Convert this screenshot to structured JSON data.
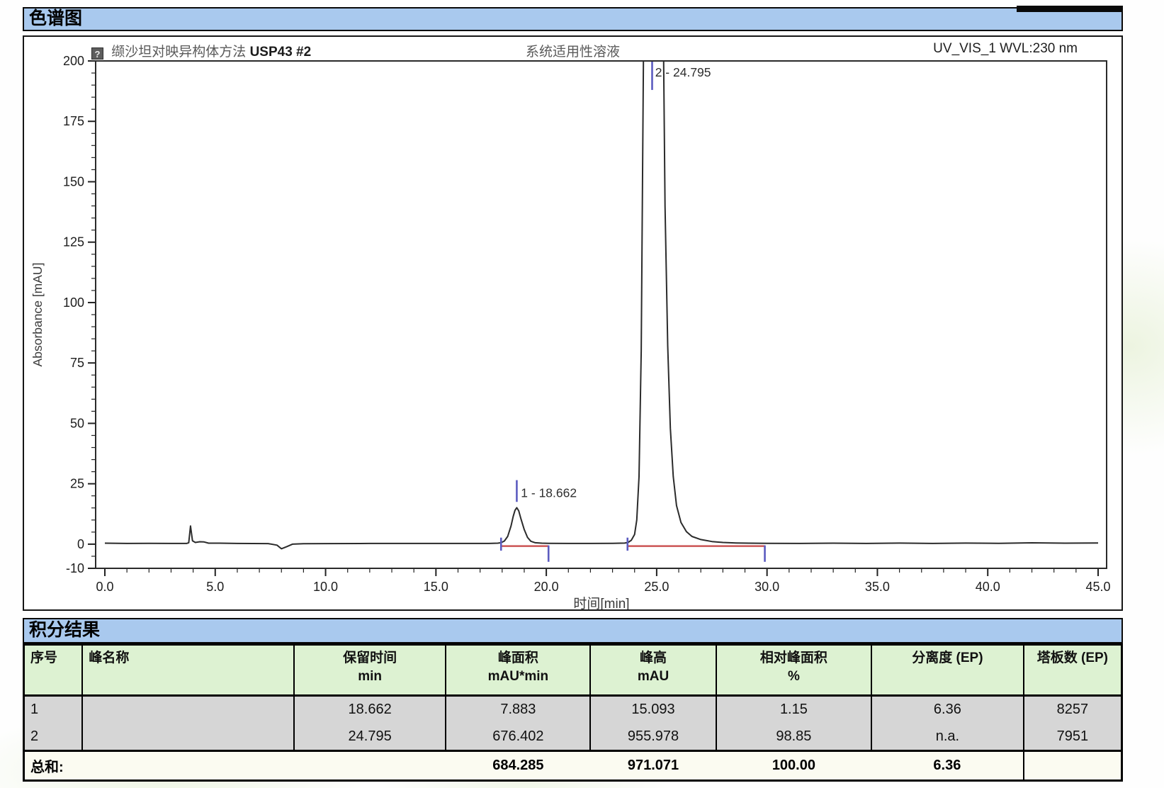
{
  "sections": {
    "chromatogram_title": "色谱图",
    "integration_title": "积分结果"
  },
  "chart": {
    "sample_icon_glyph": "?",
    "title_left_cn": "缬沙坦对映异构体方法",
    "title_left_en": "USP43 #2",
    "title_center": "系统适用性溶液",
    "title_right": "UV_VIS_1 WVL:230 nm"
  },
  "chart_data": {
    "type": "line",
    "title": "缬沙坦对映异构体方法USP43 #2 — 系统适用性溶液",
    "detector_channel": "UV_VIS_1 WVL:230 nm",
    "xlabel": "时间[min]",
    "ylabel": "Absorbance [mAU]",
    "xlim": [
      0,
      45
    ],
    "ylim": [
      -10,
      200
    ],
    "x_major_ticks": [
      0,
      5,
      10,
      15,
      20,
      25,
      30,
      35,
      40,
      45
    ],
    "x_tick_labels": [
      "0.0",
      "5.0",
      "10.0",
      "15.0",
      "20.0",
      "25.0",
      "30.0",
      "35.0",
      "40.0",
      "45.0"
    ],
    "x_minor_step": 1,
    "y_major_ticks": [
      200,
      175,
      150,
      125,
      100,
      75,
      50,
      25,
      0,
      -10
    ],
    "y_tick_labels": [
      "200",
      "175",
      "150",
      "125",
      "100",
      "75",
      "50",
      "25",
      "0",
      "-10"
    ],
    "y_minor_step": 5,
    "grid": false,
    "trace_color": "#2b2b2b",
    "baseline_color": "#cc5555",
    "marker_color": "#5b5bc0",
    "series": [
      {
        "name": "UV_VIS_1",
        "points": [
          [
            0,
            0.4
          ],
          [
            1,
            0.3
          ],
          [
            2,
            0.35
          ],
          [
            3,
            0.3
          ],
          [
            3.7,
            0.3
          ],
          [
            3.8,
            0.6
          ],
          [
            3.88,
            7.5
          ],
          [
            3.97,
            1.4
          ],
          [
            4.1,
            0.7
          ],
          [
            4.3,
            1.0
          ],
          [
            4.5,
            0.9
          ],
          [
            4.7,
            0.4
          ],
          [
            5.2,
            0.4
          ],
          [
            6,
            0.3
          ],
          [
            7.4,
            0.25
          ],
          [
            7.8,
            -0.4
          ],
          [
            8.0,
            -1.9
          ],
          [
            8.25,
            -1.0
          ],
          [
            8.5,
            0
          ],
          [
            9,
            0.2
          ],
          [
            10,
            0.25
          ],
          [
            12,
            0.3
          ],
          [
            14,
            0.3
          ],
          [
            16,
            0.3
          ],
          [
            17.4,
            0.3
          ],
          [
            17.8,
            0.4
          ],
          [
            17.95,
            0.6
          ],
          [
            18.1,
            1.3
          ],
          [
            18.25,
            3.2
          ],
          [
            18.4,
            7.5
          ],
          [
            18.5,
            11.5
          ],
          [
            18.58,
            14
          ],
          [
            18.662,
            15.1
          ],
          [
            18.75,
            13.8
          ],
          [
            18.85,
            10.5
          ],
          [
            19,
            6
          ],
          [
            19.15,
            2.8
          ],
          [
            19.3,
            1.2
          ],
          [
            19.5,
            0.6
          ],
          [
            19.8,
            0.4
          ],
          [
            20.1,
            0.35
          ],
          [
            21,
            0.3
          ],
          [
            22,
            0.3
          ],
          [
            23,
            0.35
          ],
          [
            23.55,
            0.45
          ],
          [
            23.7,
            0.7
          ],
          [
            23.85,
            1.6
          ],
          [
            24,
            4
          ],
          [
            24.1,
            10
          ],
          [
            24.2,
            28
          ],
          [
            24.3,
            80
          ],
          [
            24.4,
            200
          ],
          [
            24.5,
            430
          ],
          [
            24.62,
            720
          ],
          [
            24.72,
            910
          ],
          [
            24.795,
            956
          ],
          [
            24.88,
            910
          ],
          [
            24.98,
            770
          ],
          [
            25.08,
            580
          ],
          [
            25.18,
            390
          ],
          [
            25.28,
            235
          ],
          [
            25.38,
            140
          ],
          [
            25.5,
            82
          ],
          [
            25.62,
            48
          ],
          [
            25.75,
            28
          ],
          [
            25.9,
            16
          ],
          [
            26.1,
            9
          ],
          [
            26.35,
            5.2
          ],
          [
            26.6,
            3.2
          ],
          [
            27,
            1.9
          ],
          [
            27.5,
            1.1
          ],
          [
            28,
            0.7
          ],
          [
            28.6,
            0.5
          ],
          [
            29.2,
            0.4
          ],
          [
            30,
            0.35
          ],
          [
            31.5,
            0.3
          ],
          [
            33,
            0.4
          ],
          [
            34.5,
            0.3
          ],
          [
            36,
            0.45
          ],
          [
            37.5,
            0.3
          ],
          [
            39,
            0.45
          ],
          [
            40.5,
            0.35
          ],
          [
            42,
            0.55
          ],
          [
            43.5,
            0.4
          ],
          [
            45,
            0.5
          ]
        ]
      }
    ],
    "integration_baselines": [
      {
        "x1": 17.95,
        "x2": 20.1,
        "y": -0.8
      },
      {
        "x1": 23.68,
        "x2": 29.9,
        "y": -0.8
      }
    ],
    "peak_markers": [
      {
        "type": "start",
        "x": 17.95,
        "y1": -2.7,
        "y2": 2.7
      },
      {
        "type": "apex",
        "x": 18.662,
        "y1": 17.5,
        "y2": 26.5
      },
      {
        "type": "end",
        "x": 20.1,
        "y1": -7.3,
        "y2": -0.5
      },
      {
        "type": "start",
        "x": 23.68,
        "y1": -2.7,
        "y2": 2.7
      },
      {
        "type": "apex",
        "x": 24.795,
        "y1": 188,
        "y2": 200
      },
      {
        "type": "end",
        "x": 29.9,
        "y1": -7.3,
        "y2": -0.5
      }
    ],
    "peak_labels": [
      {
        "text": "1 - 18.662",
        "x": 18.85,
        "y": 19.5
      },
      {
        "text": "2 - 24.795",
        "x": 24.93,
        "y": 193.5
      }
    ],
    "peaks": [
      {
        "number": 1,
        "retention_min": 18.662,
        "height_mAU": 15.093
      },
      {
        "number": 2,
        "retention_min": 24.795,
        "height_mAU": 955.978
      }
    ]
  },
  "table": {
    "columns": [
      {
        "label": "序号",
        "unit": "",
        "width": 5.35,
        "align": "left"
      },
      {
        "label": "峰名称",
        "unit": "",
        "width": 19.25,
        "align": "left"
      },
      {
        "label": "保留时间",
        "unit": "min",
        "width": 13.85,
        "align": "center"
      },
      {
        "label": "峰面积",
        "unit": "mAU*min",
        "width": 13.15,
        "align": "center"
      },
      {
        "label": "峰高",
        "unit": "mAU",
        "width": 11.45,
        "align": "center"
      },
      {
        "label": "相对峰面积",
        "unit": "%",
        "width": 14.15,
        "align": "center"
      },
      {
        "label": "分离度 (EP)",
        "unit": "",
        "width": 13.85,
        "align": "center"
      },
      {
        "label": "塔板数 (EP)",
        "unit": "",
        "width": 8.95,
        "align": "center"
      }
    ],
    "rows": [
      [
        "1",
        "",
        "18.662",
        "7.883",
        "15.093",
        "1.15",
        "6.36",
        "8257"
      ],
      [
        "2",
        "",
        "24.795",
        "676.402",
        "955.978",
        "98.85",
        "n.a.",
        "7951"
      ]
    ],
    "sum_row": [
      "总和:",
      "",
      "",
      "684.285",
      "971.071",
      "100.00",
      "6.36",
      ""
    ]
  }
}
